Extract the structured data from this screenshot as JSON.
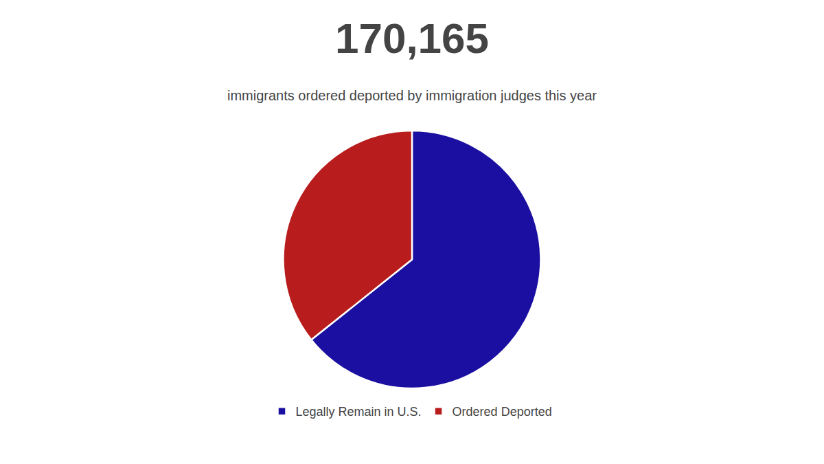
{
  "chart_data": {
    "type": "pie",
    "title": "170,165",
    "subtitle": "immigrants ordered deported by immigration judges this year",
    "categories": [
      "Legally Remain in U.S.",
      "Ordered Deported"
    ],
    "values": [
      64.3,
      35.7
    ],
    "colors": [
      "#1a0fa0",
      "#b81c1c"
    ],
    "legend": "bottom"
  }
}
